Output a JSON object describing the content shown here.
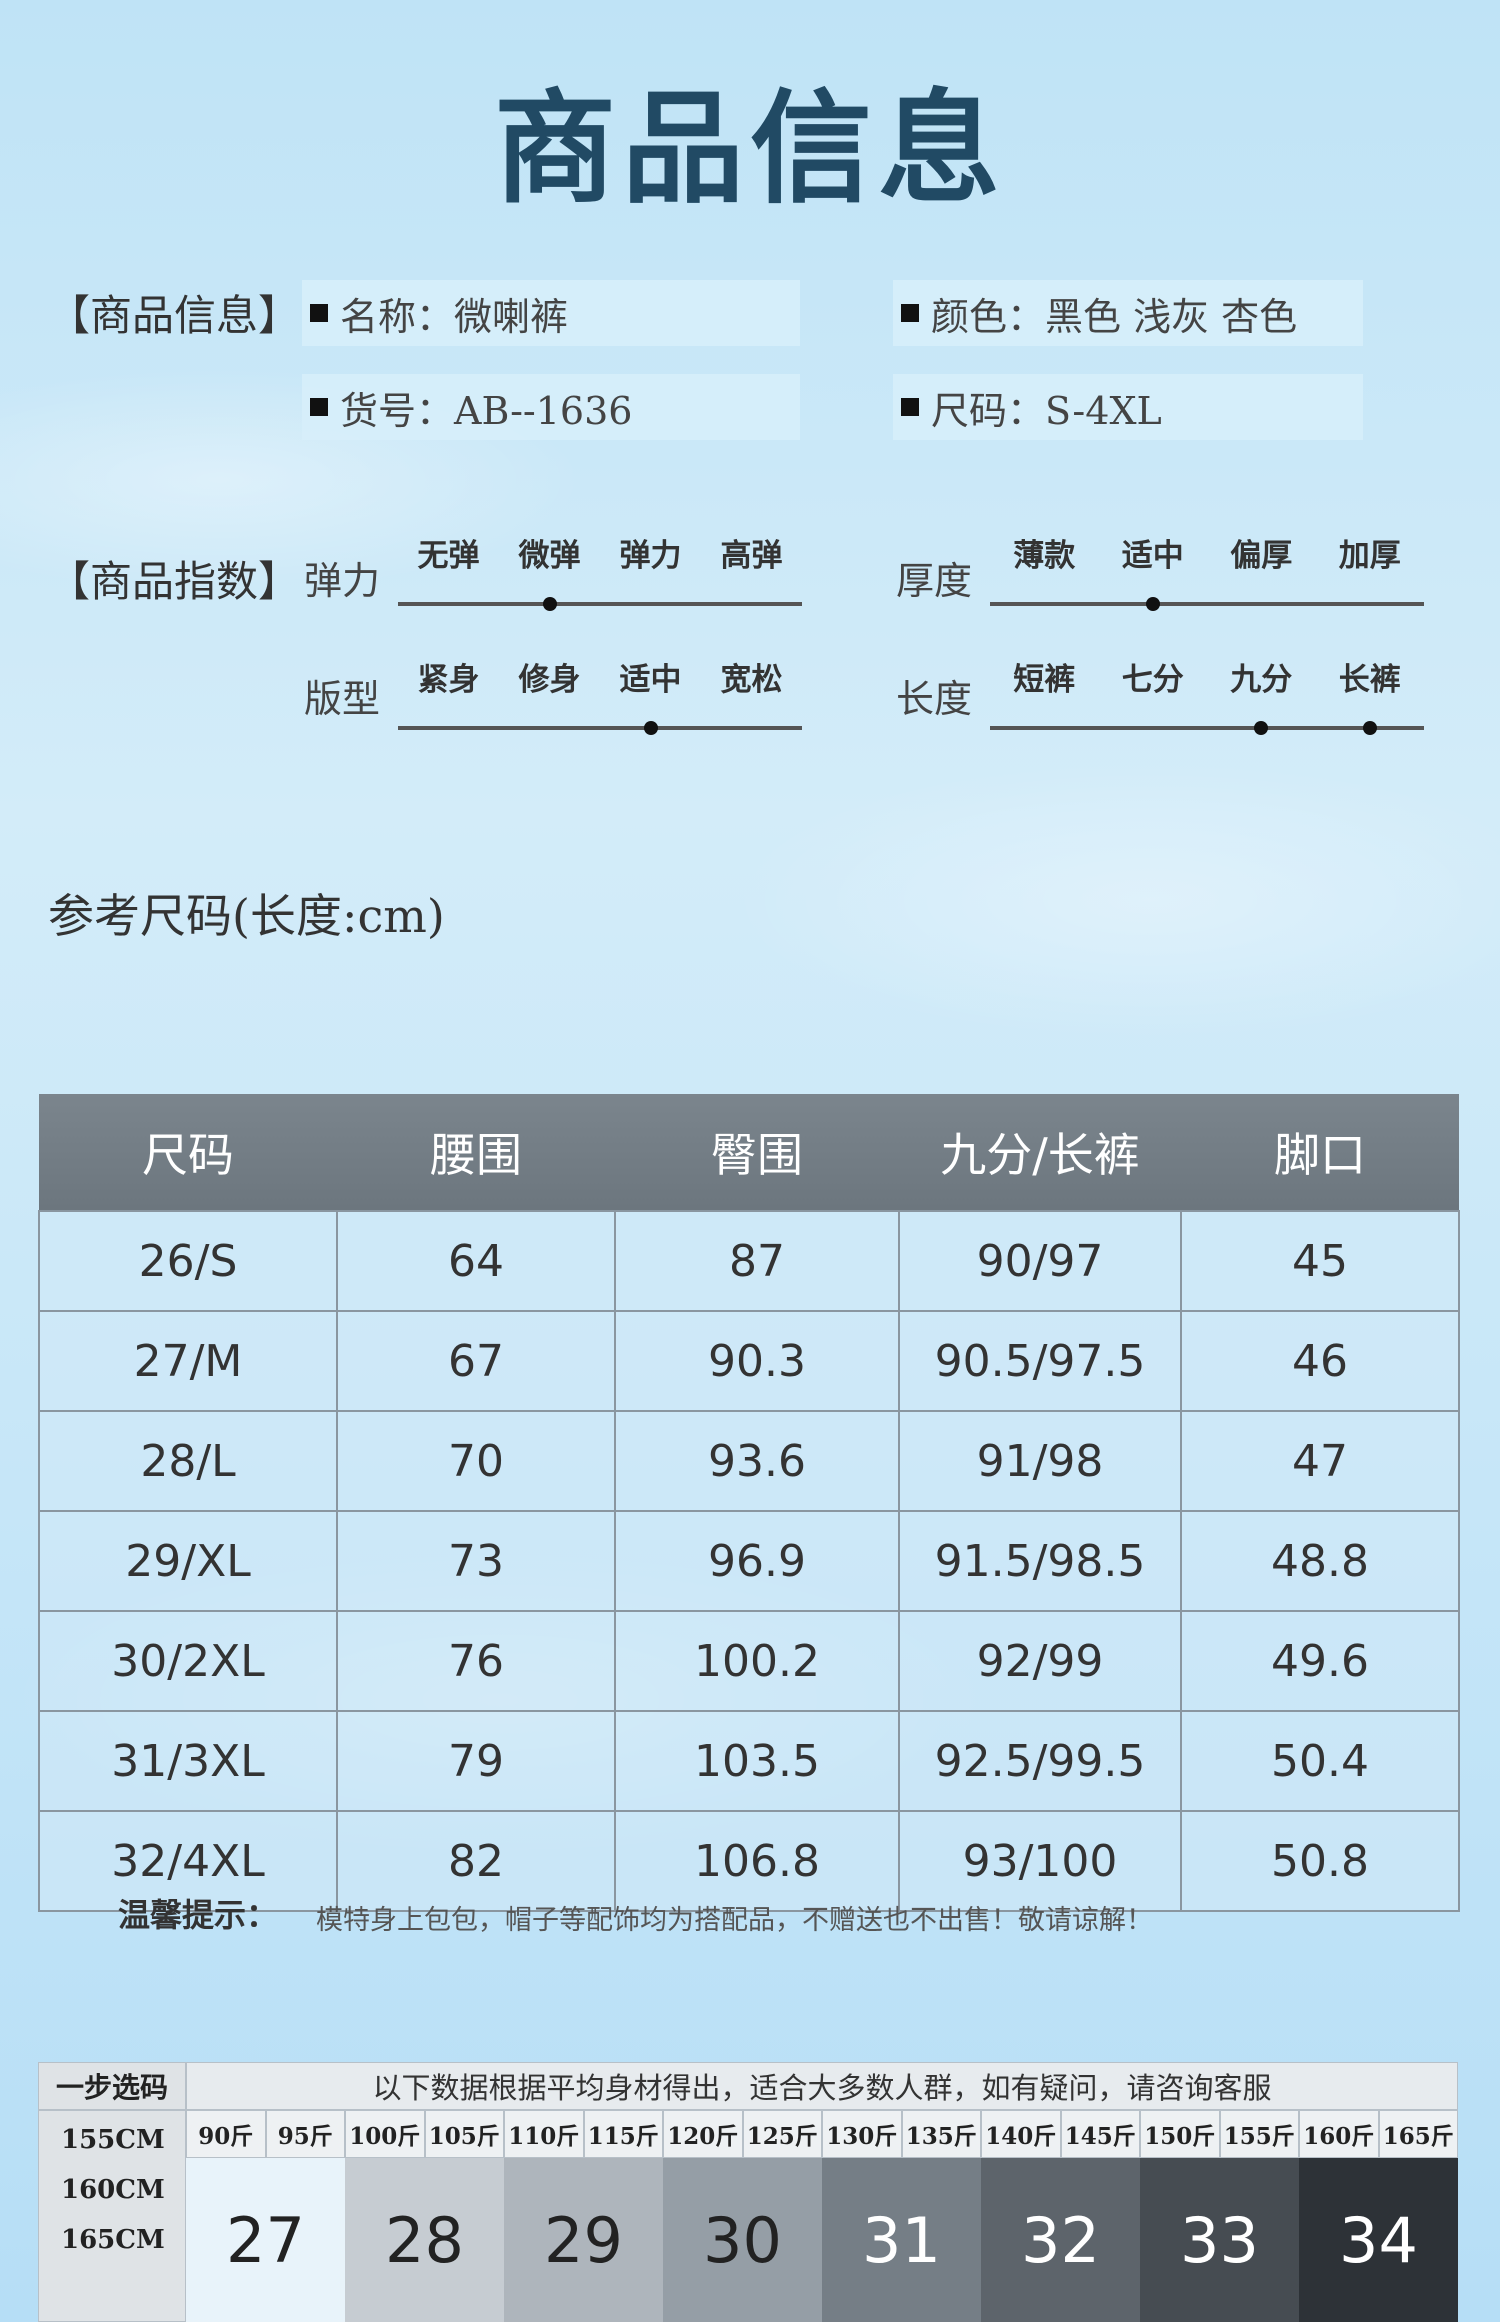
{
  "title": "商品信息",
  "info": {
    "section_label": "【商品信息】",
    "name": "名称：微喇裤",
    "color": "颜色：黑色 浅灰 杏色",
    "item_no": "货号：AB--1636",
    "size": "尺码：S-4XL"
  },
  "index": {
    "section_label": "【商品指数】",
    "scales": [
      {
        "name": "弹力",
        "options": [
          "无弹",
          "微弹",
          "弹力",
          "高弹"
        ],
        "selected": [
          "微弹"
        ]
      },
      {
        "name": "厚度",
        "options": [
          "薄款",
          "适中",
          "偏厚",
          "加厚"
        ],
        "selected": [
          "适中"
        ]
      },
      {
        "name": "版型",
        "options": [
          "紧身",
          "修身",
          "适中",
          "宽松"
        ],
        "selected": [
          "适中"
        ]
      },
      {
        "name": "长度",
        "options": [
          "短裤",
          "七分",
          "九分",
          "长裤"
        ],
        "selected": [
          "九分",
          "长裤"
        ]
      }
    ]
  },
  "reference_title": "参考尺码(长度:cm)",
  "size_table": {
    "headers": [
      "尺码",
      "腰围",
      "臀围",
      "九分/长裤",
      "脚口"
    ],
    "rows": [
      [
        "26/S",
        "64",
        "87",
        "90/97",
        "45"
      ],
      [
        "27/M",
        "67",
        "90.3",
        "90.5/97.5",
        "46"
      ],
      [
        "28/L",
        "70",
        "93.6",
        "91/98",
        "47"
      ],
      [
        "29/XL",
        "73",
        "96.9",
        "91.5/98.5",
        "48.8"
      ],
      [
        "30/2XL",
        "76",
        "100.2",
        "92/99",
        "49.6"
      ],
      [
        "31/3XL",
        "79",
        "103.5",
        "92.5/99.5",
        "50.4"
      ],
      [
        "32/4XL",
        "82",
        "106.8",
        "93/100",
        "50.8"
      ]
    ]
  },
  "tip": {
    "label": "温馨提示：",
    "text": "模特身上包包，帽子等配饰均为搭配品，不赠送也不出售！敬请谅解！"
  },
  "selector": {
    "head": "一步选码",
    "note": "以下数据根据平均身材得出，适合大多数人群，如有疑问，请咨询客服",
    "weights": [
      "90斤",
      "95斤",
      "100斤",
      "105斤",
      "110斤",
      "115斤",
      "120斤",
      "125斤",
      "130斤",
      "135斤",
      "140斤",
      "145斤",
      "150斤",
      "155斤",
      "160斤",
      "165斤"
    ],
    "heights": [
      "155CM",
      "160CM",
      "165CM"
    ],
    "sizes": [
      "27",
      "28",
      "29",
      "30",
      "31",
      "32",
      "33",
      "34"
    ],
    "block_colors": [
      "#e8f3fa",
      "#c6ccd2",
      "#aeb5bc",
      "#959ea6",
      "#757e86",
      "#5d646b",
      "#464c52",
      "#2d3237"
    ],
    "text_colors": [
      "#222",
      "#222",
      "#222",
      "#222",
      "#fff",
      "#fff",
      "#fff",
      "#fff"
    ]
  }
}
